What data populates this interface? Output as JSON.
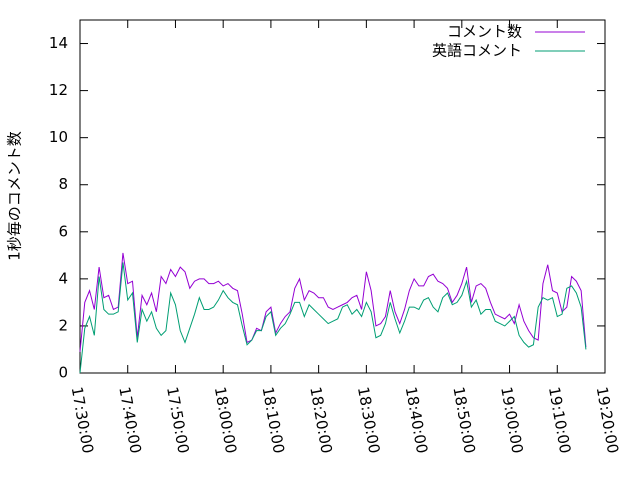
{
  "chart_data": {
    "type": "line",
    "ylabel": "1秒毎のコメント数",
    "x": [
      "17:30:00",
      "17:31:00",
      "17:32:00",
      "17:33:00",
      "17:34:00",
      "17:35:00",
      "17:36:00",
      "17:37:00",
      "17:38:00",
      "17:39:00",
      "17:40:00",
      "17:41:00",
      "17:42:00",
      "17:43:00",
      "17:44:00",
      "17:45:00",
      "17:46:00",
      "17:47:00",
      "17:48:00",
      "17:49:00",
      "17:50:00",
      "17:51:00",
      "17:52:00",
      "17:53:00",
      "17:54:00",
      "17:55:00",
      "17:56:00",
      "17:57:00",
      "17:58:00",
      "17:59:00",
      "18:00:00",
      "18:01:00",
      "18:02:00",
      "18:03:00",
      "18:04:00",
      "18:05:00",
      "18:06:00",
      "18:07:00",
      "18:08:00",
      "18:09:00",
      "18:10:00",
      "18:11:00",
      "18:12:00",
      "18:13:00",
      "18:14:00",
      "18:15:00",
      "18:16:00",
      "18:17:00",
      "18:18:00",
      "18:19:00",
      "18:20:00",
      "18:21:00",
      "18:22:00",
      "18:23:00",
      "18:24:00",
      "18:25:00",
      "18:26:00",
      "18:27:00",
      "18:28:00",
      "18:29:00",
      "18:30:00",
      "18:31:00",
      "18:32:00",
      "18:33:00",
      "18:34:00",
      "18:35:00",
      "18:36:00",
      "18:37:00",
      "18:38:00",
      "18:39:00",
      "18:40:00",
      "18:41:00",
      "18:42:00",
      "18:43:00",
      "18:44:00",
      "18:45:00",
      "18:46:00",
      "18:47:00",
      "18:48:00",
      "18:49:00",
      "18:50:00",
      "18:51:00",
      "18:52:00",
      "18:53:00",
      "18:54:00",
      "18:55:00",
      "18:56:00",
      "18:57:00",
      "18:58:00",
      "18:59:00",
      "19:00:00",
      "19:01:00",
      "19:02:00",
      "19:03:00",
      "19:04:00",
      "19:05:00",
      "19:06:00",
      "19:07:00",
      "19:08:00",
      "19:09:00",
      "19:10:00",
      "19:11:00",
      "19:12:00",
      "19:13:00",
      "19:14:00",
      "19:15:00",
      "19:16:00"
    ],
    "series": [
      {
        "name": "コメント数",
        "color": "#9400d3",
        "values": [
          0.9,
          3.0,
          3.5,
          2.7,
          4.5,
          3.2,
          3.3,
          2.7,
          2.8,
          5.1,
          3.8,
          3.9,
          1.5,
          3.3,
          2.9,
          3.4,
          2.6,
          4.1,
          3.8,
          4.4,
          4.1,
          4.5,
          4.3,
          3.6,
          3.9,
          4.0,
          4.0,
          3.8,
          3.8,
          3.9,
          3.7,
          3.8,
          3.6,
          3.5,
          2.5,
          1.3,
          1.4,
          1.9,
          1.8,
          2.6,
          2.8,
          1.7,
          2.1,
          2.4,
          2.6,
          3.6,
          4.0,
          3.1,
          3.5,
          3.4,
          3.2,
          3.2,
          2.8,
          2.7,
          2.8,
          2.9,
          3.0,
          3.2,
          3.3,
          2.7,
          4.3,
          3.5,
          2.0,
          2.1,
          2.4,
          3.5,
          2.6,
          2.1,
          2.7,
          3.5,
          4.0,
          3.7,
          3.7,
          4.1,
          4.2,
          3.9,
          3.8,
          3.6,
          3.0,
          3.3,
          3.8,
          4.5,
          3.0,
          3.7,
          3.8,
          3.6,
          3.0,
          2.5,
          2.4,
          2.3,
          2.5,
          2.1,
          2.9,
          2.2,
          1.8,
          1.5,
          1.4,
          3.8,
          4.6,
          3.5,
          3.4,
          2.6,
          2.8,
          4.1,
          3.9,
          3.5,
          1.1
        ]
      },
      {
        "name": "英語コメント",
        "color": "#009e73",
        "values": [
          0.0,
          1.9,
          2.4,
          1.6,
          4.1,
          2.7,
          2.5,
          2.5,
          2.6,
          4.7,
          3.1,
          3.4,
          1.3,
          2.7,
          2.2,
          2.6,
          1.9,
          1.6,
          1.8,
          3.4,
          2.9,
          1.8,
          1.3,
          1.9,
          2.5,
          3.2,
          2.7,
          2.7,
          2.8,
          3.1,
          3.5,
          3.2,
          3.0,
          2.9,
          2.0,
          1.2,
          1.4,
          1.8,
          1.8,
          2.4,
          2.6,
          1.6,
          1.9,
          2.1,
          2.5,
          3.0,
          3.0,
          2.4,
          2.9,
          2.7,
          2.5,
          2.3,
          2.1,
          2.2,
          2.3,
          2.8,
          2.9,
          2.5,
          2.7,
          2.4,
          3.0,
          2.6,
          1.5,
          1.6,
          2.1,
          3.0,
          2.3,
          1.7,
          2.2,
          2.8,
          2.8,
          2.7,
          3.1,
          3.2,
          2.8,
          2.6,
          3.2,
          3.4,
          2.9,
          3.0,
          3.3,
          3.9,
          2.8,
          3.1,
          2.5,
          2.7,
          2.7,
          2.2,
          2.1,
          2.0,
          2.2,
          2.4,
          1.6,
          1.3,
          1.1,
          1.2,
          2.8,
          3.2,
          3.1,
          3.2,
          2.4,
          2.5,
          3.6,
          3.7,
          3.4,
          2.8,
          1.0
        ]
      }
    ],
    "xlim": [
      "17:30:00",
      "19:20:00"
    ],
    "xticks": [
      "17:30:00",
      "17:40:00",
      "17:50:00",
      "18:00:00",
      "18:10:00",
      "18:20:00",
      "18:30:00",
      "18:40:00",
      "18:50:00",
      "19:00:00",
      "19:10:00",
      "19:20:00"
    ],
    "ylim": [
      0,
      15
    ],
    "yticks": [
      0,
      2,
      4,
      6,
      8,
      10,
      12,
      14
    ],
    "grid": false,
    "legend": "top-right"
  }
}
